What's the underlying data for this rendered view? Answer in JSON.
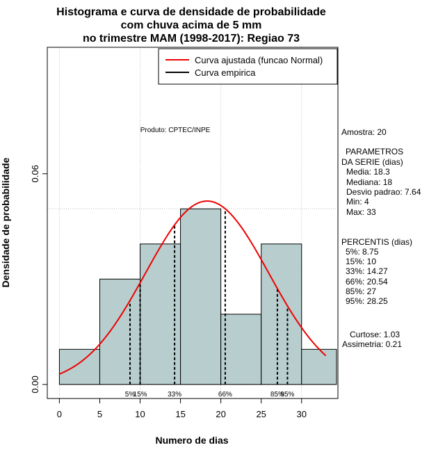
{
  "chart_data": {
    "type": "bar",
    "title_lines": [
      "Histograma e curva de densidade de probabilidade",
      "com chuva acima de 5 mm",
      "no trimestre MAM (1998-2017): Regiao 73"
    ],
    "xlabel": "Numero de dias",
    "ylabel": "Densidade de probabilidade",
    "xlim": [
      -1.5,
      34.5
    ],
    "ylim": [
      -0.004,
      0.096
    ],
    "x_ticks": [
      0,
      5,
      10,
      15,
      20,
      25,
      30
    ],
    "x_tick_labels": [
      "0",
      "5",
      "10",
      "15",
      "20",
      "25",
      "30"
    ],
    "y_ticks": [
      0.0,
      0.06
    ],
    "y_tick_labels": [
      "0.00",
      "0.06"
    ],
    "grid": true,
    "grid_x": [
      0,
      10,
      20,
      30
    ],
    "grid_y": [
      0.05
    ],
    "bins": [
      {
        "x0": 0,
        "x1": 5,
        "density": 0.01
      },
      {
        "x0": 5,
        "x1": 10,
        "density": 0.03
      },
      {
        "x0": 10,
        "x1": 15,
        "density": 0.04
      },
      {
        "x0": 15,
        "x1": 20,
        "density": 0.05
      },
      {
        "x0": 20,
        "x1": 25,
        "density": 0.02
      },
      {
        "x0": 25,
        "x1": 30,
        "density": 0.04
      },
      {
        "x0": 30,
        "x1": 35,
        "density": 0.01
      }
    ],
    "fitted_curve": {
      "name": "Curva ajustada (funcao Normal)",
      "distribution": "normal",
      "mean": 18.3,
      "sd": 7.64,
      "x_range": [
        0,
        33
      ],
      "color": "#ee0000"
    },
    "empirical_curve": {
      "name": "Curva empirica",
      "color": "#000000"
    },
    "percentiles": [
      {
        "label": "5%",
        "value": 8.75
      },
      {
        "label": "15%",
        "value": 10
      },
      {
        "label": "33%",
        "value": 14.27
      },
      {
        "label": "66%",
        "value": 20.54
      },
      {
        "label": "85%",
        "value": 27
      },
      {
        "label": "95%",
        "value": 28.25
      }
    ],
    "legend_position": "top-right",
    "bar_color": "#b8cece"
  },
  "product_label": "Produto: CPTEC/INPE",
  "stats": {
    "amostra": "Amostra: 20",
    "param_header": "PARAMETROS",
    "param_sub": "DA SERIE (dias)",
    "media": "Media: 18.3",
    "mediana": "Mediana: 18",
    "desvio": "Desvio padrao: 7.64",
    "min": "Min: 4",
    "max": "Max: 33",
    "perc_header": "PERCENTIS (dias)",
    "p5": "5%: 8.75",
    "p15": "15%: 10",
    "p33": "33%: 14.27",
    "p66": "66%: 20.54",
    "p85": "85%: 27",
    "p95": "95%: 28.25",
    "curtose": "Curtose: 1.03",
    "assimetria": "Assimetria: 0.21"
  }
}
